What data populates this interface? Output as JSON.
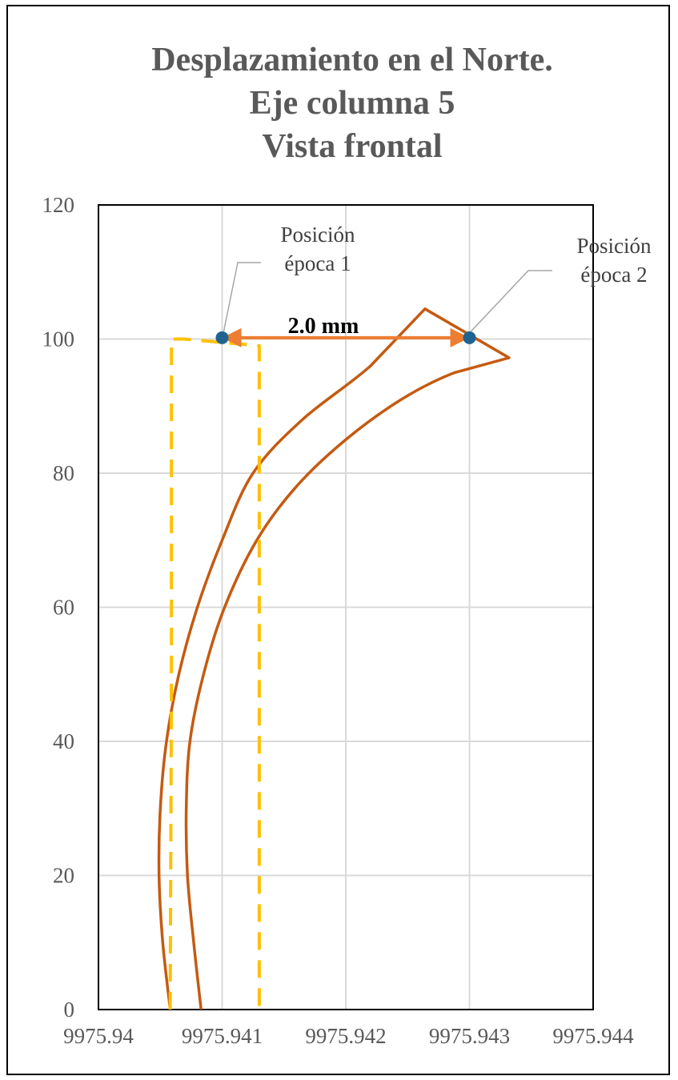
{
  "chart_data": {
    "type": "line",
    "title": [
      "Desplazamiento en el Norte.",
      "Eje columna 5",
      "Vista frontal"
    ],
    "xlim": [
      9975.94,
      9975.944
    ],
    "ylim": [
      0,
      120
    ],
    "x_ticks": [
      {
        "value": 9975.94,
        "label": "9975.94"
      },
      {
        "value": 9975.941,
        "label": "9975.941"
      },
      {
        "value": 9975.942,
        "label": "9975.942"
      },
      {
        "value": 9975.943,
        "label": "9975.943"
      },
      {
        "value": 9975.944,
        "label": "9975.944"
      }
    ],
    "y_ticks": [
      {
        "value": 0,
        "label": "0"
      },
      {
        "value": 20,
        "label": "20"
      },
      {
        "value": 40,
        "label": "40"
      },
      {
        "value": 60,
        "label": "60"
      },
      {
        "value": 80,
        "label": "80"
      },
      {
        "value": 100,
        "label": "100"
      },
      {
        "value": 120,
        "label": "120"
      }
    ],
    "grid": true,
    "series": [
      {
        "color": "#C55A11",
        "style": "solid",
        "x": [
          9975.94058,
          9975.94052,
          9975.94049,
          9975.9405,
          9975.94055,
          9975.94065,
          9975.9408,
          9975.941,
          9975.94125,
          9975.94165,
          9975.9422,
          9975.94264,
          9975.94332,
          9975.94288,
          9975.94245,
          9975.942,
          9975.9416,
          9975.94128,
          9975.94102,
          9975.94085,
          9975.94074,
          9975.94071,
          9975.94072,
          9975.94077,
          9975.94083
        ],
        "y": [
          0,
          10,
          20,
          30,
          40,
          50,
          60,
          70,
          80,
          88,
          96,
          104.5,
          97.2,
          95,
          91,
          85,
          78,
          70,
          60,
          50,
          40,
          30,
          20,
          10,
          0
        ]
      },
      {
        "color": "#FFC000",
        "style": "dashed",
        "x": [
          9975.94058,
          9975.94059,
          9975.94059,
          9975.94069,
          9975.9413,
          9975.9413
        ],
        "y": [
          0,
          50,
          100,
          100,
          99,
          0
        ]
      }
    ],
    "points": [
      {
        "name": "Posición época 1",
        "x": 9975.941,
        "y": 100.2,
        "color": "#1F6391"
      },
      {
        "name": "Posición época 2",
        "x": 9975.943,
        "y": 100.2,
        "color": "#1F6391"
      }
    ],
    "annotations": [
      {
        "lines": [
          "Posición",
          "época 1"
        ],
        "point": 0
      },
      {
        "lines": [
          "Posición",
          "época 2"
        ],
        "point": 1
      }
    ],
    "distance": {
      "label": "2.0 mm",
      "x_from": 9975.941,
      "x_to": 9975.943,
      "y": 100.2,
      "color": "#ED7D31"
    }
  }
}
